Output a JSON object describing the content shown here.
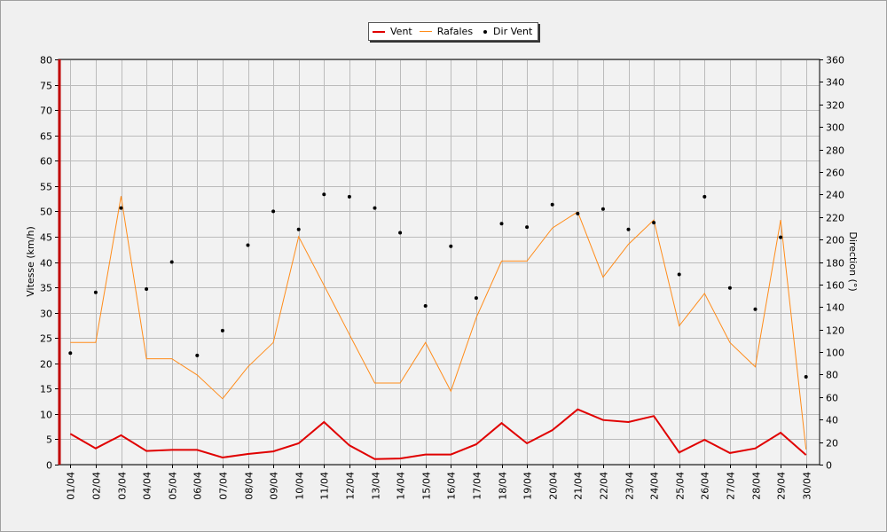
{
  "chart_data": {
    "type": "line",
    "xlabel": "",
    "ylabel": "Vitesse (km/h)",
    "y2label": "Direction (°)",
    "ylim": [
      0,
      80
    ],
    "y2lim": [
      0,
      360
    ],
    "yticks": [
      "0",
      "5",
      "10",
      "15",
      "20",
      "25",
      "30",
      "35",
      "40",
      "45",
      "50",
      "55",
      "60",
      "65",
      "70",
      "75",
      "80"
    ],
    "y2ticks": [
      "0",
      "20",
      "40",
      "60",
      "80",
      "100",
      "120",
      "140",
      "160",
      "180",
      "200",
      "220",
      "240",
      "260",
      "280",
      "300",
      "320",
      "340",
      "360"
    ],
    "grid": true,
    "legend_position": "top-center",
    "categories": [
      "01/04",
      "02/04",
      "03/04",
      "04/04",
      "05/04",
      "06/04",
      "07/04",
      "08/04",
      "09/04",
      "10/04",
      "11/04",
      "12/04",
      "13/04",
      "14/04",
      "15/04",
      "16/04",
      "17/04",
      "18/04",
      "19/04",
      "20/04",
      "21/04",
      "22/04",
      "23/04",
      "24/04",
      "25/04",
      "26/04",
      "27/04",
      "28/04",
      "29/04",
      "30/04"
    ],
    "series": [
      {
        "name": "Vent",
        "kind": "line",
        "axis": "left",
        "color": "#e00000",
        "values": [
          6.1,
          3.2,
          5.8,
          2.7,
          2.9,
          2.9,
          1.4,
          2.1,
          2.6,
          4.2,
          8.4,
          3.8,
          1.1,
          1.2,
          2.0,
          2.0,
          4.0,
          8.2,
          4.2,
          6.8,
          10.9,
          8.8,
          8.4,
          9.6,
          2.4,
          4.9,
          2.3,
          3.2,
          6.3,
          1.9
        ]
      },
      {
        "name": "Rafales",
        "kind": "line",
        "axis": "left",
        "color": "#ff8c1a",
        "values": [
          24.1,
          24.1,
          53.0,
          20.9,
          20.9,
          17.7,
          13.0,
          19.3,
          24.1,
          45.0,
          35.4,
          25.7,
          16.1,
          16.1,
          24.1,
          14.5,
          29.0,
          40.2,
          40.2,
          46.7,
          49.9,
          37.0,
          43.5,
          48.3,
          27.4,
          33.8,
          24.1,
          19.3,
          48.3,
          3.0
        ]
      },
      {
        "name": "Dir Vent",
        "kind": "scatter",
        "axis": "right",
        "color": "#000000",
        "values": [
          99,
          153,
          228,
          156,
          180,
          97,
          119,
          195,
          225,
          209,
          240,
          238,
          228,
          206,
          141,
          194,
          148,
          214,
          211,
          231,
          223,
          227,
          209,
          215,
          169,
          238,
          157,
          138,
          202,
          78
        ]
      }
    ]
  }
}
